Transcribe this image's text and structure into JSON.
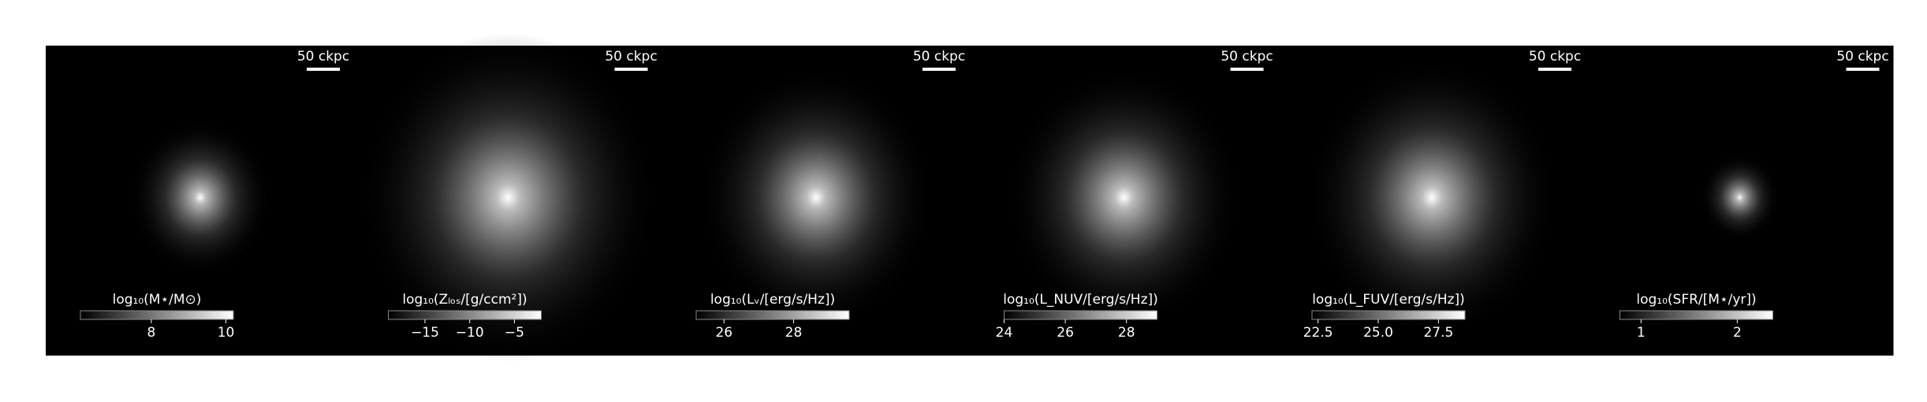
{
  "chart_data": [
    {
      "type": "image",
      "scale_bar": "50 ckpc",
      "colorbar_label": "log₁₀(M⋆/M⊙)",
      "clim": [
        6.1,
        10.2
      ],
      "ticks": [
        8,
        10
      ]
    },
    {
      "type": "image",
      "scale_bar": "50 ckpc",
      "colorbar_label": "log₁₀(Zₗₒₛ/[g/ccm²])",
      "clim": [
        -19.1,
        -2.0
      ],
      "ticks": [
        {
          "value": -15,
          "label": "−15"
        },
        {
          "value": -10,
          "label": "−10"
        },
        {
          "value": -5,
          "label": "−5"
        }
      ]
    },
    {
      "type": "image",
      "scale_bar": "50 ckpc",
      "colorbar_label": "log₁₀(Lᵥ/[erg/s/Hz])",
      "clim": [
        25.2,
        29.6
      ],
      "ticks": [
        26,
        28
      ]
    },
    {
      "type": "image",
      "scale_bar": "50 ckpc",
      "colorbar_label": "log₁₀(L_NUV/[erg/s/Hz])",
      "clim": [
        24.0,
        29.0
      ],
      "ticks": [
        24,
        26,
        28
      ]
    },
    {
      "type": "image",
      "scale_bar": "50 ckpc",
      "colorbar_label": "log₁₀(L_FUV/[erg/s/Hz])",
      "clim": [
        22.25,
        28.6
      ],
      "ticks": [
        22.5,
        {
          "value": 25,
          "label": "25.0"
        },
        27.5
      ]
    },
    {
      "type": "image",
      "scale_bar": "50 ckpc",
      "colorbar_label": "log₁₀(SFR/[M⋆/yr])",
      "clim": [
        0.78,
        2.37
      ],
      "ticks": [
        1,
        2
      ]
    }
  ]
}
